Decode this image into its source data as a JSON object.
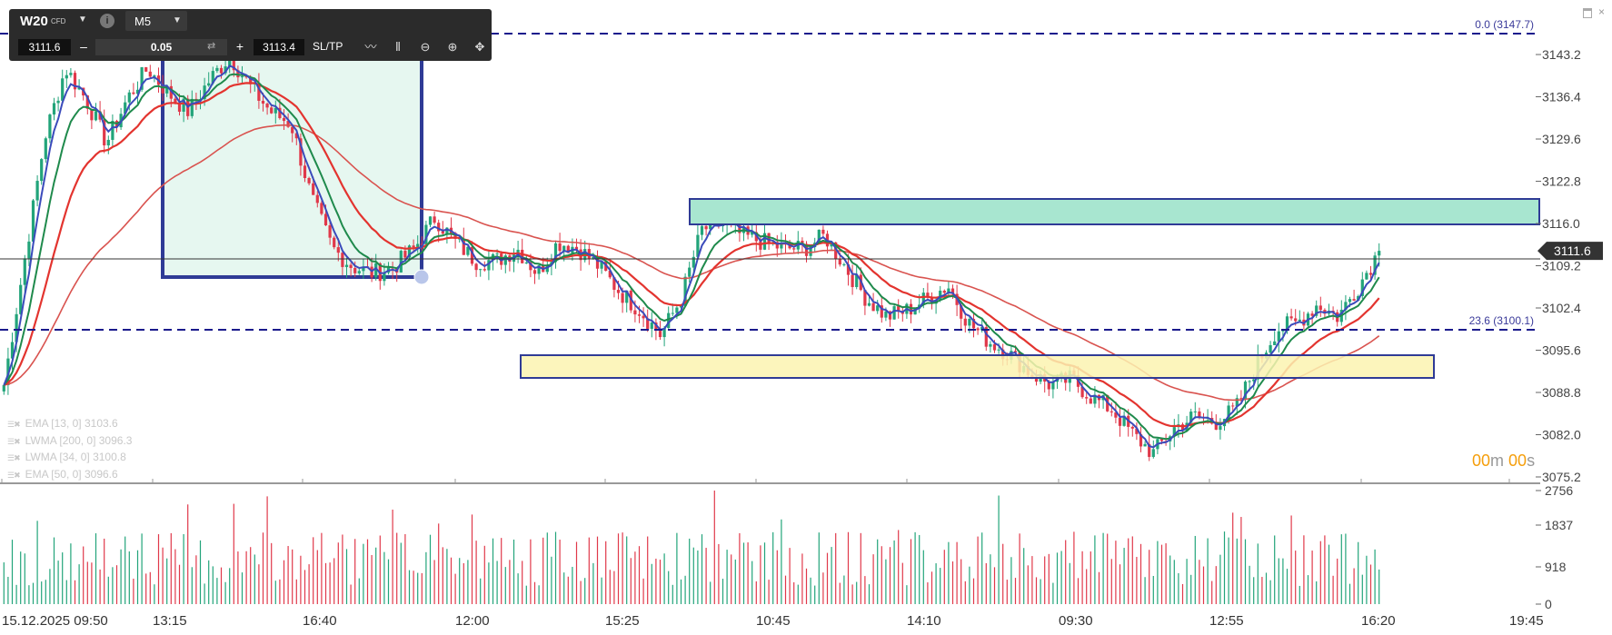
{
  "toolbar": {
    "symbol": "W20",
    "symbol_type": "CFD",
    "info_icon": "info-icon",
    "timeframe": "M5",
    "bid": "3111.6",
    "minus": "–",
    "volume": "0.05",
    "swap_icon": "swap-icon",
    "plus": "+",
    "ask": "3113.4",
    "sltp": "SL/TP",
    "tools": [
      "line-chart-icon",
      "candles-icon",
      "zoom-out-icon",
      "zoom-in-icon",
      "move-icon"
    ]
  },
  "window_controls": {
    "maximize": "maximize-icon",
    "close": "×"
  },
  "price_axis": {
    "ticks": [
      "3143.2",
      "3136.4",
      "3129.6",
      "3122.8",
      "3116.0",
      "3109.2",
      "3102.4",
      "3095.6",
      "3088.8",
      "3082.0",
      "3075.2"
    ],
    "current_price": "3111.6"
  },
  "fib_levels": [
    {
      "label": "0.0 (3147.7)",
      "price": 3147.7
    },
    {
      "label": "23.6 (3100.1)",
      "price": 3100.1
    }
  ],
  "indicators": [
    {
      "label": "EMA [13, 0] 3103.6",
      "color": "#3b4bbb"
    },
    {
      "label": "LWMA [200, 0] 3096.3",
      "color": "#d9534f"
    },
    {
      "label": "LWMA [34, 0] 3100.8",
      "color": "#e3342f"
    },
    {
      "label": "EMA [50, 0] 3096.6",
      "color": "#1f8a4c"
    }
  ],
  "timer": {
    "minutes": "00",
    "m_unit": "m",
    "seconds": "00",
    "s_unit": "s"
  },
  "volume_axis": {
    "ticks": [
      "2756",
      "1837",
      "918",
      "0"
    ]
  },
  "time_axis": [
    "15.12.2025 09:50",
    "13:15",
    "16:40",
    "12:00",
    "15:25",
    "10:45",
    "14:10",
    "09:30",
    "12:55",
    "16:20",
    "19:45"
  ],
  "colors": {
    "bull": "#22a47a",
    "bear": "#e0384a",
    "fib_line": "#1a1a8c",
    "zone_green": "#a8e6d0",
    "zone_yellow": "#fbf3b0",
    "zone_border": "#2f3b96"
  },
  "chart_data": {
    "type": "candlestick",
    "ylim": [
      3075.2,
      3147.7
    ],
    "close_path": [
      3090,
      3110,
      3130,
      3141,
      3136,
      3129,
      3136,
      3141,
      3137,
      3134,
      3139,
      3143,
      3138,
      3134,
      3132,
      3120,
      3112,
      3109,
      3108,
      3109,
      3112,
      3117,
      3113,
      3110,
      3110,
      3112,
      3108,
      3113,
      3112,
      3109,
      3105,
      3102,
      3098,
      3104,
      3115,
      3116,
      3114,
      3113,
      3112,
      3112,
      3114,
      3109,
      3104,
      3101,
      3102,
      3104,
      3106,
      3100,
      3097,
      3095,
      3092,
      3090,
      3091,
      3088,
      3086,
      3082,
      3079,
      3083,
      3085,
      3084,
      3086,
      3093,
      3099,
      3100,
      3103,
      3101,
      3106,
      3111.6
    ]
  }
}
